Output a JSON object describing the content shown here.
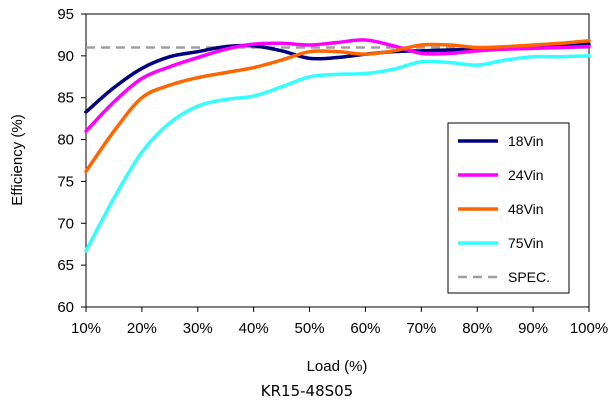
{
  "chart_data": {
    "type": "line",
    "xlabel": "Load (%)",
    "ylabel": "Efficiency (%)",
    "ylim": [
      60,
      95
    ],
    "xlim": [
      10,
      100
    ],
    "x_ticks": [
      "10%",
      "20%",
      "30%",
      "40%",
      "50%",
      "60%",
      "70%",
      "80%",
      "90%",
      "100%"
    ],
    "y_ticks": [
      "60",
      "65",
      "70",
      "75",
      "80",
      "85",
      "90",
      "95"
    ],
    "grid": false,
    "legend_position": "right",
    "x": [
      10,
      15,
      20,
      25,
      30,
      35,
      40,
      45,
      50,
      55,
      60,
      65,
      70,
      75,
      80,
      85,
      90,
      95,
      100
    ],
    "series": [
      {
        "name": "18Vin",
        "color": "#000080",
        "values": [
          83.3,
          86.2,
          88.5,
          89.9,
          90.5,
          91.1,
          91.2,
          90.6,
          89.7,
          89.8,
          90.2,
          90.5,
          90.6,
          90.7,
          90.8,
          91.0,
          91.2,
          91.3,
          91.4
        ]
      },
      {
        "name": "24Vin",
        "color": "#ff00ff",
        "values": [
          81.0,
          84.5,
          87.3,
          88.7,
          89.8,
          90.8,
          91.4,
          91.5,
          91.3,
          91.6,
          91.9,
          91.2,
          90.3,
          90.3,
          90.6,
          90.8,
          90.9,
          91.0,
          91.1
        ]
      },
      {
        "name": "48Vin",
        "color": "#ff6600",
        "values": [
          76.2,
          81.0,
          85.0,
          86.5,
          87.4,
          88.0,
          88.6,
          89.5,
          90.5,
          90.5,
          90.2,
          90.6,
          91.3,
          91.3,
          91.0,
          91.1,
          91.3,
          91.5,
          91.8
        ]
      },
      {
        "name": "75Vin",
        "color": "#33ffff",
        "values": [
          66.7,
          73.0,
          78.5,
          82.0,
          84.0,
          84.8,
          85.2,
          86.3,
          87.5,
          87.8,
          87.9,
          88.4,
          89.3,
          89.2,
          88.9,
          89.5,
          89.9,
          89.9,
          90.0
        ]
      },
      {
        "name": "SPEC.",
        "color": "#a0a0a0",
        "dashed": true,
        "values": [
          91,
          91,
          91,
          91,
          91,
          91,
          91,
          91,
          91,
          91,
          91,
          91,
          91,
          91,
          91,
          91,
          91,
          91,
          91
        ]
      }
    ]
  },
  "caption": "KR15-48S05"
}
